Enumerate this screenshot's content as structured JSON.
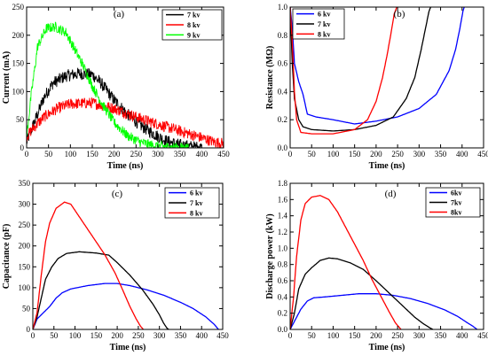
{
  "chart_data": [
    {
      "type": "line",
      "panel_label": "(a)",
      "xlabel": "Time (ns)",
      "ylabel": "Current (mA)",
      "xlim": [
        0,
        450
      ],
      "ylim": [
        0,
        250
      ],
      "xticks": [
        0,
        50,
        100,
        150,
        200,
        250,
        300,
        350,
        400,
        450
      ],
      "yticks": [
        0,
        50,
        100,
        150,
        200,
        250
      ],
      "legend": "top-right",
      "series": [
        {
          "name": "7 kv",
          "color": "#000000",
          "noise": 11,
          "x": [
            0,
            15,
            40,
            60,
            90,
            120,
            150,
            170,
            200,
            230,
            260,
            290,
            320,
            350,
            380,
            400
          ],
          "y": [
            10,
            40,
            90,
            115,
            128,
            132,
            130,
            115,
            85,
            60,
            40,
            25,
            12,
            5,
            2,
            0
          ]
        },
        {
          "name": "8 kv",
          "color": "#ff0000",
          "noise": 10,
          "x": [
            0,
            15,
            40,
            70,
            100,
            150,
            200,
            250,
            300,
            350,
            400,
            430,
            450
          ],
          "y": [
            20,
            35,
            55,
            70,
            78,
            80,
            70,
            55,
            42,
            30,
            18,
            10,
            8
          ]
        },
        {
          "name": "9 kv",
          "color": "#00ff00",
          "noise": 9,
          "x": [
            0,
            10,
            25,
            45,
            65,
            90,
            110,
            130,
            150,
            175,
            200,
            230,
            260,
            290,
            330,
            370
          ],
          "y": [
            20,
            90,
            180,
            212,
            215,
            205,
            175,
            145,
            110,
            75,
            45,
            22,
            10,
            4,
            1,
            0
          ]
        }
      ]
    },
    {
      "type": "line",
      "panel_label": "(b)",
      "xlabel": "Time (ns)",
      "ylabel": "Resistance (MΩ)",
      "xlim": [
        0,
        450
      ],
      "ylim": [
        0,
        1.0
      ],
      "xticks": [
        0,
        50,
        100,
        150,
        200,
        250,
        300,
        350,
        400,
        450
      ],
      "yticks": [
        0.0,
        0.2,
        0.4,
        0.6,
        0.8,
        1.0
      ],
      "legend": "top-left",
      "series": [
        {
          "name": "6 kv",
          "color": "#0000ff",
          "x": [
            0,
            5,
            10,
            20,
            30,
            40,
            60,
            100,
            150,
            200,
            250,
            300,
            340,
            370,
            385,
            395,
            402,
            405
          ],
          "y": [
            1.0,
            0.85,
            0.6,
            0.47,
            0.38,
            0.24,
            0.22,
            0.2,
            0.17,
            0.19,
            0.22,
            0.28,
            0.38,
            0.55,
            0.7,
            0.85,
            0.97,
            1.0
          ]
        },
        {
          "name": "7 kv",
          "color": "#000000",
          "x": [
            0,
            5,
            10,
            20,
            30,
            50,
            100,
            150,
            200,
            240,
            270,
            290,
            305,
            315,
            323,
            327
          ],
          "y": [
            1.0,
            0.6,
            0.35,
            0.2,
            0.15,
            0.13,
            0.12,
            0.13,
            0.16,
            0.22,
            0.35,
            0.5,
            0.7,
            0.85,
            0.97,
            1.0
          ]
        },
        {
          "name": "8 kv",
          "color": "#ff0000",
          "x": [
            0,
            5,
            10,
            15,
            25,
            50,
            100,
            150,
            180,
            200,
            215,
            225,
            235,
            242,
            248
          ],
          "y": [
            1.0,
            0.75,
            0.4,
            0.2,
            0.11,
            0.1,
            0.1,
            0.13,
            0.2,
            0.33,
            0.5,
            0.65,
            0.82,
            0.95,
            1.0
          ]
        }
      ]
    },
    {
      "type": "line",
      "panel_label": "(c)",
      "xlabel": "Time (ns)",
      "ylabel": "Capacitance (pF)",
      "xlim": [
        0,
        450
      ],
      "ylim": [
        0,
        350
      ],
      "xticks": [
        0,
        50,
        100,
        150,
        200,
        250,
        300,
        350,
        400,
        450
      ],
      "yticks": [
        0,
        50,
        100,
        150,
        200,
        250,
        300,
        350
      ],
      "legend": "top-right",
      "series": [
        {
          "name": "6 kv",
          "color": "#0000ff",
          "x": [
            0,
            10,
            25,
            40,
            55,
            70,
            90,
            130,
            170,
            200,
            230,
            270,
            310,
            350,
            380,
            410,
            430,
            440
          ],
          "y": [
            0,
            25,
            40,
            55,
            75,
            88,
            97,
            105,
            110,
            110,
            105,
            95,
            82,
            65,
            50,
            30,
            12,
            0
          ]
        },
        {
          "name": "7 kv",
          "color": "#000000",
          "x": [
            0,
            10,
            20,
            30,
            45,
            60,
            80,
            110,
            150,
            180,
            200,
            230,
            260,
            285,
            300,
            310,
            318,
            322
          ],
          "y": [
            0,
            30,
            75,
            120,
            150,
            170,
            182,
            186,
            183,
            178,
            160,
            130,
            95,
            60,
            35,
            15,
            3,
            0
          ]
        },
        {
          "name": "8 kv",
          "color": "#ff0000",
          "x": [
            0,
            10,
            20,
            30,
            40,
            55,
            75,
            90,
            110,
            140,
            170,
            195,
            215,
            230,
            245,
            255,
            262
          ],
          "y": [
            0,
            40,
            130,
            210,
            255,
            290,
            305,
            300,
            270,
            225,
            180,
            135,
            90,
            55,
            25,
            8,
            0
          ]
        }
      ]
    },
    {
      "type": "line",
      "panel_label": "(d)",
      "xlabel": "Time (ns)",
      "ylabel": "Discharge power (kW)",
      "xlim": [
        0,
        450
      ],
      "ylim": [
        0,
        1.8
      ],
      "xticks": [
        0,
        50,
        100,
        150,
        200,
        250,
        300,
        350,
        400,
        450
      ],
      "yticks": [
        0.0,
        0.2,
        0.4,
        0.6,
        0.8,
        1.0,
        1.2,
        1.4,
        1.6,
        1.8
      ],
      "legend": "top-right",
      "series": [
        {
          "name": "6kv",
          "color": "#0000ff",
          "x": [
            0,
            10,
            25,
            40,
            55,
            80,
            120,
            160,
            200,
            240,
            280,
            320,
            360,
            390,
            410,
            425,
            435
          ],
          "y": [
            0,
            0.1,
            0.25,
            0.35,
            0.39,
            0.4,
            0.42,
            0.44,
            0.44,
            0.42,
            0.38,
            0.32,
            0.24,
            0.16,
            0.09,
            0.04,
            0
          ]
        },
        {
          "name": "7kv",
          "color": "#000000",
          "x": [
            0,
            10,
            20,
            35,
            50,
            70,
            90,
            110,
            140,
            170,
            200,
            230,
            260,
            290,
            310,
            325,
            332
          ],
          "y": [
            0,
            0.2,
            0.5,
            0.68,
            0.76,
            0.85,
            0.88,
            0.87,
            0.82,
            0.74,
            0.6,
            0.45,
            0.3,
            0.15,
            0.07,
            0.02,
            0
          ]
        },
        {
          "name": "8kv",
          "color": "#ff0000",
          "x": [
            0,
            8,
            15,
            25,
            35,
            50,
            70,
            90,
            110,
            130,
            150,
            170,
            190,
            210,
            230,
            245,
            258
          ],
          "y": [
            0,
            0.4,
            0.9,
            1.35,
            1.55,
            1.63,
            1.65,
            1.6,
            1.45,
            1.25,
            1.05,
            0.85,
            0.62,
            0.42,
            0.22,
            0.08,
            0
          ]
        }
      ]
    }
  ]
}
